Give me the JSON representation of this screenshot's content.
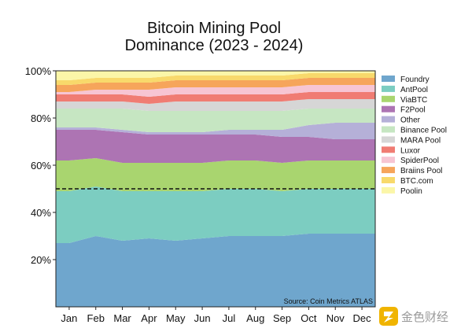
{
  "chart_data": {
    "type": "area",
    "stacked": true,
    "normalized": true,
    "title_lines": [
      "Bitcoin Mining Pool",
      "Dominance (2023 - 2024)"
    ],
    "x_tick_labels": [
      "Jan",
      "Feb",
      "Mar",
      "Apr",
      "May",
      "Jun",
      "Jul",
      "Aug",
      "Sep",
      "Oct",
      "Nov",
      "Dec"
    ],
    "y_tick_labels": [
      "20%",
      "40%",
      "60%",
      "80%",
      "100%"
    ],
    "y_ticks": [
      20,
      40,
      60,
      80,
      100
    ],
    "ylim": [
      0,
      100
    ],
    "reference_line": {
      "y": 50,
      "style": "dashed"
    },
    "legend_position": "right",
    "source": "Source: Coin Metrics ATLAS",
    "series": [
      {
        "name": "Foundry",
        "color": "#6fa6cd",
        "values": [
          27,
          30,
          28,
          29,
          28,
          29,
          30,
          30,
          30,
          31,
          31,
          31
        ]
      },
      {
        "name": "AntPool",
        "color": "#7ccdc1",
        "values": [
          22,
          21,
          21,
          20,
          21,
          20,
          20,
          20,
          19,
          19,
          19,
          19
        ]
      },
      {
        "name": "ViaBTC",
        "color": "#a9d56f",
        "values": [
          13,
          12,
          12,
          12,
          12,
          12,
          12,
          12,
          12,
          12,
          12,
          12
        ]
      },
      {
        "name": "F2Pool",
        "color": "#ad74b3",
        "values": [
          13,
          12,
          13,
          12,
          12,
          12,
          11,
          11,
          11,
          10,
          9,
          9
        ]
      },
      {
        "name": "Other",
        "color": "#b5b0d8",
        "values": [
          1,
          1,
          1,
          1,
          1,
          1,
          2,
          2,
          3,
          5,
          7,
          7
        ]
      },
      {
        "name": "Binance Pool",
        "color": "#c6e6c2",
        "values": [
          8,
          8,
          9,
          9,
          9,
          9,
          8,
          8,
          8,
          7,
          6,
          6
        ]
      },
      {
        "name": "MARA Pool",
        "color": "#d6d6d6",
        "values": [
          3,
          3,
          3,
          3,
          4,
          4,
          4,
          4,
          4,
          4,
          4,
          4
        ]
      },
      {
        "name": "Luxor",
        "color": "#f07c73",
        "values": [
          3,
          3,
          3,
          3,
          3,
          3,
          3,
          3,
          3,
          3,
          3,
          3
        ]
      },
      {
        "name": "SpiderPool",
        "color": "#f7c5d3",
        "values": [
          1,
          2,
          2,
          3,
          3,
          3,
          3,
          3,
          3,
          3,
          3,
          3
        ]
      },
      {
        "name": "Braiins Pool",
        "color": "#f6a55b",
        "values": [
          3,
          3,
          3,
          3,
          3,
          3,
          3,
          3,
          3,
          3,
          3,
          3
        ]
      },
      {
        "name": "BTC.com",
        "color": "#f8d96b",
        "values": [
          2,
          2,
          2,
          2,
          2,
          2,
          2,
          2,
          2,
          2,
          2,
          2
        ]
      },
      {
        "name": "Poolin",
        "color": "#fbf6a8",
        "values": [
          4,
          3,
          3,
          3,
          2,
          2,
          2,
          2,
          2,
          1,
          1,
          1
        ]
      }
    ]
  },
  "watermark": {
    "text": "金色财经",
    "icon": "jinse-logo-icon",
    "color": "#f0b400"
  }
}
